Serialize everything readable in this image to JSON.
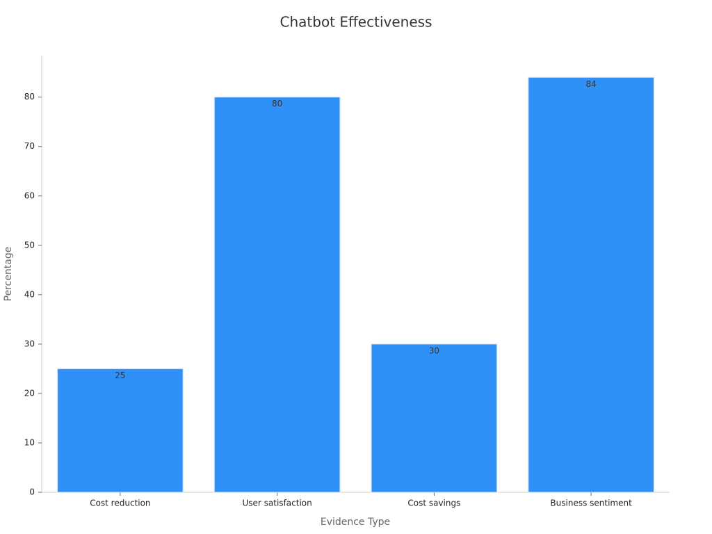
{
  "chart_data": {
    "type": "bar",
    "title": "Chatbot Effectiveness",
    "x_label": "Evidence Type",
    "y_label": "Percentage",
    "categories": [
      "Cost reduction",
      "User satisfaction",
      "Cost savings",
      "Business sentiment"
    ],
    "values": [
      25,
      80,
      30,
      84
    ],
    "color": "#2f91f7",
    "ylim": [
      0,
      88.4
    ],
    "yticks": [
      0,
      10,
      20,
      30,
      40,
      50,
      60,
      70,
      80
    ],
    "grid": false
  }
}
